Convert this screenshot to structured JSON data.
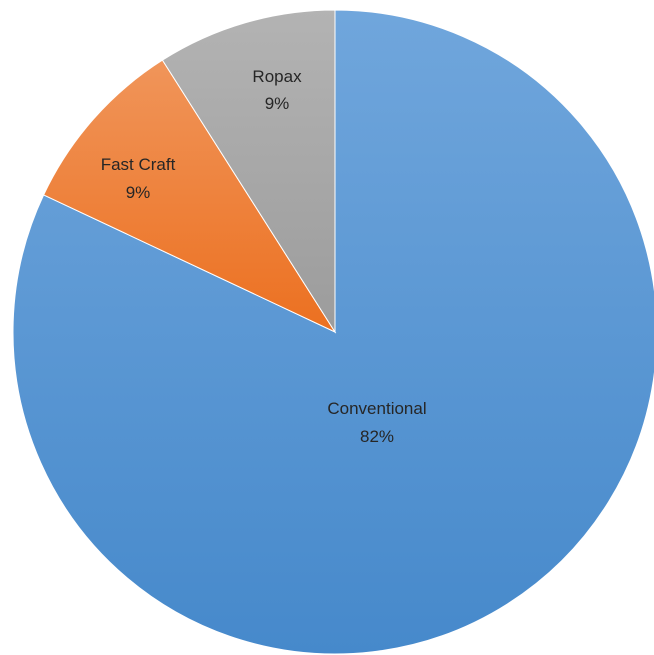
{
  "chart_data": {
    "type": "pie",
    "title": "",
    "start_angle_deg": 0,
    "direction": "clockwise",
    "legend": "none",
    "slices": [
      {
        "label": "Conventional",
        "value": 82,
        "percent_label": "82%",
        "color": "#5b9bd5"
      },
      {
        "label": "Fast Craft",
        "value": 9,
        "percent_label": "9%",
        "color": "#ed7d31"
      },
      {
        "label": "Ropax",
        "value": 9,
        "percent_label": "9%",
        "color": "#a5a5a5"
      }
    ]
  }
}
